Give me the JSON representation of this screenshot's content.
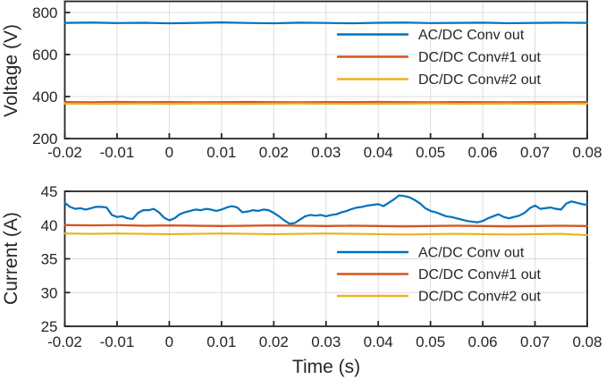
{
  "figure": {
    "background": "#ffffff",
    "axis_color": "#262626",
    "grid_color": "#dcdcdc",
    "tick_label_color": "#262626"
  },
  "chart_data": [
    {
      "type": "line",
      "title": "",
      "xlabel": "",
      "ylabel": "Voltage (V)",
      "grid": true,
      "legend_position": "inside-upper-right",
      "xlim": [
        -0.02,
        0.08
      ],
      "ylim": [
        200,
        853
      ],
      "xticks": [
        -0.02,
        -0.01,
        0,
        0.01,
        0.02,
        0.03,
        0.04,
        0.05,
        0.06,
        0.07,
        0.08
      ],
      "xtick_labels": [
        "-0.02",
        "-0.01",
        "0",
        "0.01",
        "0.02",
        "0.03",
        "0.04",
        "0.05",
        "0.06",
        "0.07",
        "0.08"
      ],
      "yticks": [
        200,
        400,
        600,
        800
      ],
      "ytick_labels": [
        "200",
        "400",
        "600",
        "800"
      ],
      "series": [
        {
          "name": "AC/DC Conv out",
          "color": "#0072BD",
          "x_start": -0.02,
          "x_step": 0.005,
          "values": [
            750.5,
            752,
            749.5,
            751,
            748.5,
            750.5,
            752.5,
            750,
            748.5,
            751.5,
            750,
            748.5,
            751,
            752,
            749.5,
            750.5,
            751.5,
            749,
            750.5,
            751.5,
            750.5
          ]
        },
        {
          "name": "DC/DC Conv#1 out",
          "color": "#D95319",
          "x_start": -0.02,
          "x_step": 0.005,
          "values": [
            374,
            373,
            374.5,
            373.5,
            374,
            373,
            373.5,
            374.5,
            373.5,
            373,
            374,
            373.5,
            374.5,
            373.5,
            373,
            374,
            373.5,
            373,
            374,
            373.5,
            374
          ]
        },
        {
          "name": "DC/DC Conv#2 out",
          "color": "#EDB120",
          "x_start": -0.02,
          "x_step": 0.005,
          "values": [
            366.5,
            365.5,
            366,
            367,
            365.5,
            366.5,
            366,
            365.5,
            366.5,
            367,
            366,
            365.5,
            366,
            366.5,
            367,
            365.5,
            366,
            366.5,
            365.5,
            366,
            366.5
          ]
        }
      ]
    },
    {
      "type": "line",
      "title": "",
      "xlabel": "Time (s)",
      "ylabel": "Current (A)",
      "grid": true,
      "legend_position": "inside-middle-right",
      "xlim": [
        -0.02,
        0.08
      ],
      "ylim": [
        25,
        45
      ],
      "xticks": [
        -0.02,
        -0.01,
        0,
        0.01,
        0.02,
        0.03,
        0.04,
        0.05,
        0.06,
        0.07,
        0.08
      ],
      "xtick_labels": [
        "-0.02",
        "-0.01",
        "0",
        "0.01",
        "0.02",
        "0.03",
        "0.04",
        "0.05",
        "0.06",
        "0.07",
        "0.08"
      ],
      "yticks": [
        25,
        30,
        35,
        40,
        45
      ],
      "ytick_labels": [
        "25",
        "30",
        "35",
        "40",
        "45"
      ],
      "series": [
        {
          "name": "AC/DC Conv out",
          "color": "#0072BD",
          "x_start": -0.02,
          "x_step": 0.001,
          "values": [
            43.3,
            42.7,
            42.4,
            42.5,
            42.3,
            42.5,
            42.7,
            42.7,
            42.6,
            41.5,
            41.2,
            41.3,
            41.0,
            40.9,
            41.8,
            42.2,
            42.2,
            42.4,
            41.9,
            41.1,
            40.7,
            41.0,
            41.6,
            41.9,
            42.1,
            42.3,
            42.2,
            42.4,
            42.3,
            42.1,
            42.3,
            42.6,
            42.8,
            42.6,
            41.9,
            42.0,
            42.2,
            42.1,
            42.3,
            42.2,
            41.8,
            41.3,
            40.7,
            40.2,
            40.3,
            40.8,
            41.3,
            41.5,
            41.4,
            41.5,
            41.3,
            41.5,
            41.6,
            41.9,
            42.1,
            42.4,
            42.6,
            42.7,
            42.9,
            43.0,
            43.1,
            42.8,
            43.3,
            43.8,
            44.4,
            44.3,
            44.1,
            43.7,
            43.2,
            42.5,
            42.1,
            41.9,
            41.6,
            41.3,
            41.2,
            41.0,
            40.8,
            40.6,
            40.5,
            40.4,
            40.6,
            41.0,
            41.3,
            41.6,
            41.2,
            41.0,
            41.2,
            41.4,
            41.8,
            42.5,
            42.9,
            42.4,
            42.5,
            42.6,
            42.4,
            42.3,
            43.2,
            43.5,
            43.3,
            43.1,
            43.0
          ]
        },
        {
          "name": "DC/DC Conv#1 out",
          "color": "#D95319",
          "x_start": -0.02,
          "x_step": 0.005,
          "values": [
            40.0,
            39.95,
            40.0,
            39.9,
            39.95,
            39.9,
            39.85,
            39.9,
            39.95,
            39.9,
            39.85,
            39.9,
            39.85,
            39.8,
            39.85,
            39.9,
            39.85,
            39.8,
            39.85,
            39.9,
            39.85
          ]
        },
        {
          "name": "DC/DC Conv#2 out",
          "color": "#EDB120",
          "x_start": -0.02,
          "x_step": 0.005,
          "values": [
            38.75,
            38.7,
            38.75,
            38.7,
            38.65,
            38.7,
            38.75,
            38.7,
            38.65,
            38.7,
            38.75,
            38.7,
            38.65,
            38.6,
            38.65,
            38.7,
            38.65,
            38.6,
            38.65,
            38.7,
            38.5
          ]
        }
      ]
    }
  ]
}
